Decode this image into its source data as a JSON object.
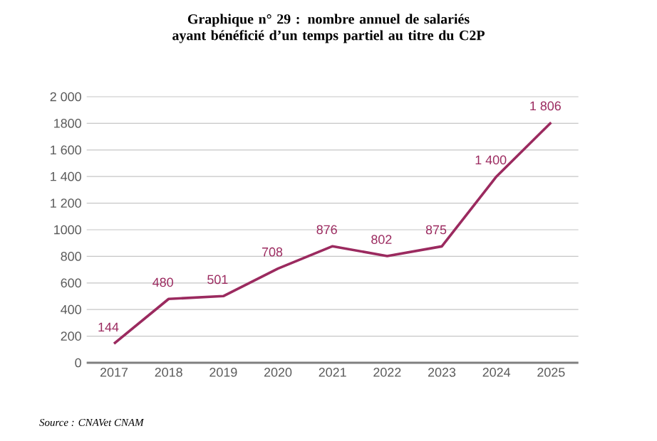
{
  "chart_data": {
    "type": "line",
    "title": "Graphique n° 29 : nombre annuel de salariés ayant bénéficié d’un temps partiel au titre du C2P",
    "categories": [
      "2017",
      "2018",
      "2019",
      "2020",
      "2021",
      "2022",
      "2023",
      "2024",
      "2025"
    ],
    "series": [
      {
        "color": "#9b2a5f",
        "values": [
          144,
          480,
          501,
          708,
          876,
          802,
          875,
          1400,
          1806
        ],
        "value_labels": [
          "144",
          "480",
          "501",
          "708",
          "876",
          "802",
          "875",
          "1 400",
          "1 806"
        ]
      }
    ],
    "ylim": [
      0,
      2000
    ],
    "yticks": [
      0,
      200,
      400,
      600,
      800,
      {
        "value": 1000,
        "label": "1000"
      },
      {
        "value": 1200,
        "label": "1 200"
      },
      {
        "value": 1400,
        "label": "1 400"
      },
      {
        "value": 1600,
        "label": "1 600"
      },
      {
        "value": 1800,
        "label": "1800"
      },
      {
        "value": 2000,
        "label": "2 000"
      }
    ],
    "grid": "y",
    "marker": "none",
    "line_style": "solid",
    "annotations": [
      "Source : CNAVet CNAM"
    ]
  }
}
